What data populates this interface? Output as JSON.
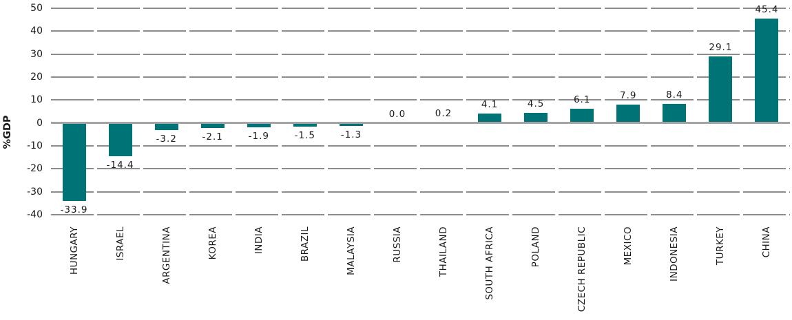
{
  "chart_data": {
    "type": "bar",
    "title": "",
    "xlabel": "",
    "ylabel": "%GDP",
    "categories": [
      "HUNGARY",
      "ISRAEL",
      "ARGENTINA",
      "KOREA",
      "INDIA",
      "BRAZIL",
      "MALAYSIA",
      "RUSSIA",
      "THAILAND",
      "SOUTH AFRICA",
      "POLAND",
      "CZECH REPUBLIC",
      "MEXICO",
      "INDONESIA",
      "TURKEY",
      "CHINA"
    ],
    "values": [
      -33.9,
      -14.4,
      -3.2,
      -2.1,
      -1.9,
      -1.5,
      -1.3,
      0.0,
      0.2,
      4.1,
      4.5,
      6.1,
      7.9,
      8.4,
      29.1,
      45.4
    ],
    "value_labels": [
      "-33.9",
      "-14.4",
      "-3.2",
      "-2.1",
      "-1.9",
      "-1.5",
      "-1.3",
      "0.0",
      "0.2",
      "4.1",
      "4.5",
      "6.1",
      "7.9",
      "8.4",
      "29.1",
      "45.4"
    ],
    "ylim": [
      -40,
      50
    ],
    "yticks": [
      50,
      40,
      30,
      20,
      10,
      0,
      -10,
      -20,
      -30,
      -40
    ],
    "grid": "horizontal dashed gridlines, solid zero line",
    "legend": "none",
    "colors": {
      "bar": "#007377",
      "gridline": "#8c8c8c",
      "zero_line": "#a3a3a3",
      "text": "#1a1a1a",
      "background": "#ffffff"
    }
  }
}
